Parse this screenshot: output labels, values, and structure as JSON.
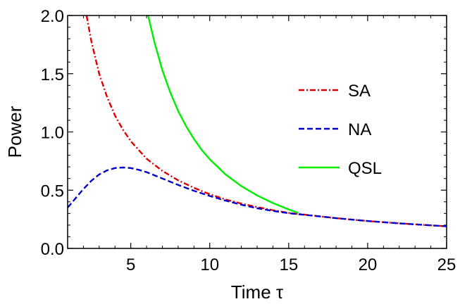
{
  "chart_data": {
    "type": "line",
    "title": "",
    "xlabel": "Time τ",
    "ylabel": "Power",
    "xlim": [
      1,
      25
    ],
    "ylim": [
      0,
      2
    ],
    "xticks": [
      5,
      10,
      15,
      20,
      25
    ],
    "xtick_labels": [
      "5",
      "10",
      "15",
      "20",
      "25"
    ],
    "yticks": [
      0,
      0.5,
      1,
      1.5,
      2
    ],
    "ytick_labels": [
      "0.0",
      "0.5",
      "1.0",
      "1.5",
      "2.0"
    ],
    "grid": false,
    "legend_position": "top-right",
    "series": [
      {
        "name": "SA",
        "color": "#e00000",
        "style": "dash-dot",
        "x": [
          2.2,
          2.5,
          3,
          3.5,
          4,
          4.5,
          5,
          6,
          7,
          8,
          9,
          10,
          11,
          12,
          13,
          14,
          15,
          16,
          18,
          20,
          22,
          25
        ],
        "y": [
          2.0,
          1.78,
          1.5,
          1.3,
          1.14,
          1.02,
          0.92,
          0.77,
          0.665,
          0.585,
          0.52,
          0.465,
          0.42,
          0.385,
          0.355,
          0.328,
          0.305,
          0.29,
          0.26,
          0.235,
          0.215,
          0.19
        ]
      },
      {
        "name": "NA",
        "color": "#0000cc",
        "style": "dashed",
        "x": [
          1,
          1.5,
          2,
          2.5,
          3,
          3.5,
          4,
          4.5,
          5,
          5.5,
          6,
          7,
          8,
          9,
          10,
          11,
          12,
          13,
          14,
          15,
          16,
          18,
          20,
          22,
          25
        ],
        "y": [
          0.35,
          0.43,
          0.51,
          0.58,
          0.635,
          0.67,
          0.69,
          0.695,
          0.69,
          0.675,
          0.655,
          0.6,
          0.545,
          0.495,
          0.45,
          0.41,
          0.375,
          0.345,
          0.322,
          0.302,
          0.288,
          0.26,
          0.235,
          0.215,
          0.19
        ]
      },
      {
        "name": "QSL",
        "color": "#00ee00",
        "style": "solid",
        "x": [
          6.1,
          6.5,
          7,
          7.5,
          8,
          8.5,
          9,
          9.5,
          10,
          11,
          12,
          13,
          14,
          15,
          15.6
        ],
        "y": [
          2.0,
          1.77,
          1.53,
          1.34,
          1.18,
          1.05,
          0.94,
          0.845,
          0.765,
          0.635,
          0.535,
          0.455,
          0.39,
          0.335,
          0.305
        ]
      }
    ]
  }
}
